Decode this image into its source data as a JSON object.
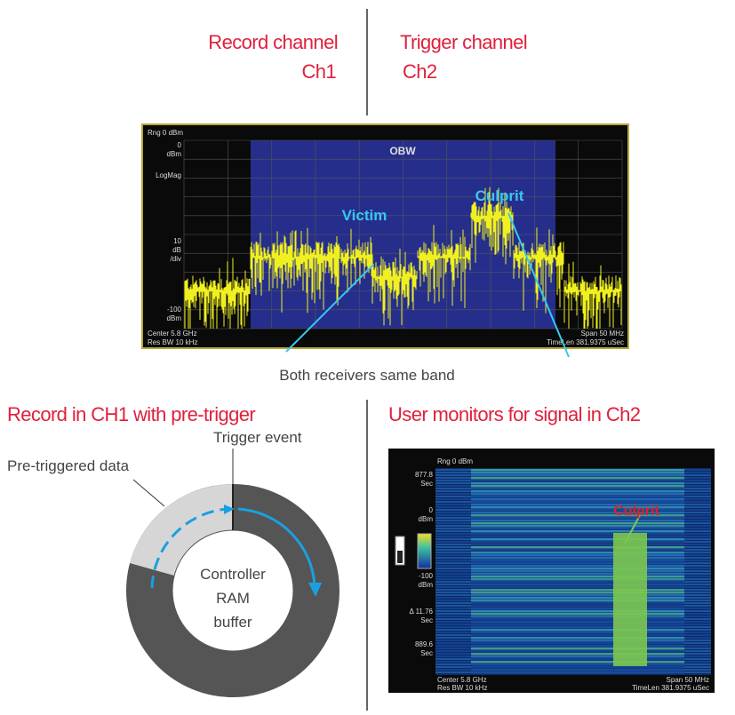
{
  "header": {
    "record_channel": "Record channel",
    "record_ch": "Ch1",
    "trigger_channel": "Trigger channel",
    "trigger_ch": "Ch2"
  },
  "spectrum": {
    "range": "Rng 0 dBm",
    "y_labels": [
      "0",
      "dBm",
      "LogMag",
      "10",
      "dB",
      "/div",
      "-100",
      "dBm"
    ],
    "obw": "OBW",
    "victim": "Victim",
    "culprit": "Culprit",
    "center": "Center 5.8 GHz",
    "res_bw": "Res BW 10 kHz",
    "span": "Span 50 MHz",
    "time_len": "TimeLen 381.9375 uSec",
    "caption": "Both receivers same band"
  },
  "record": {
    "heading": "Record in CH1 with pre-trigger",
    "pre_triggered": "Pre-triggered data",
    "trigger_event": "Trigger event",
    "buffer_lines": [
      "Controller",
      "RAM",
      "buffer"
    ]
  },
  "monitor": {
    "heading": "User monitors for signal in Ch2",
    "range": "Rng 0 dBm",
    "y_labels": [
      "877.8",
      "Sec",
      "0",
      "dBm",
      "-100",
      "dBm",
      "Δ 11.76",
      "Sec",
      "889.6",
      "Sec"
    ],
    "culprit": "Culprit",
    "center": "Center 5.8 GHz",
    "res_bw": "Res BW 10 kHz",
    "span": "Span 50 MHz",
    "time_len": "TimeLen 381.9375 uSec"
  }
}
